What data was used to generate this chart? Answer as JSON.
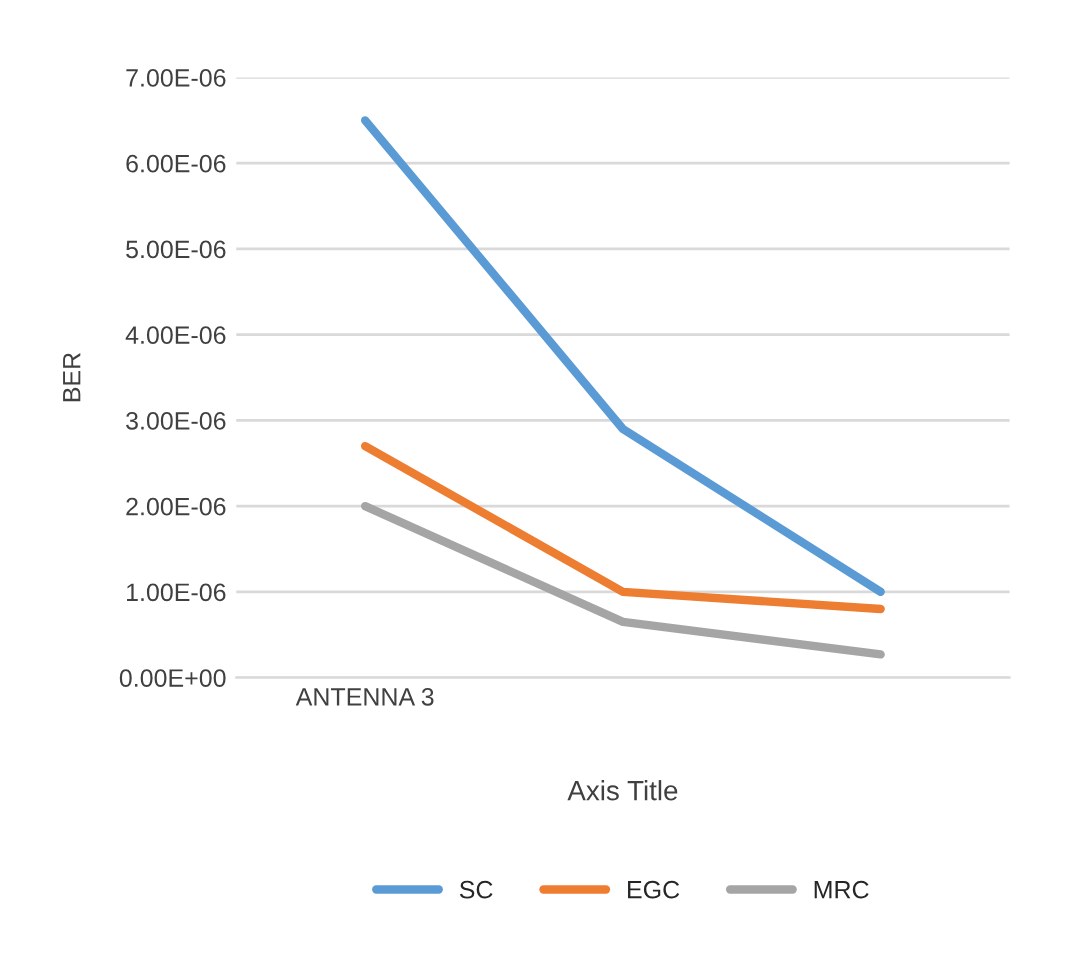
{
  "chart_data": {
    "type": "line",
    "xlabel": "Axis Title",
    "ylabel": "BER",
    "categories": [
      "ANTENNA 3",
      null,
      null
    ],
    "series": [
      {
        "name": "SC",
        "color": "#5b9bd5",
        "values": [
          6.5e-06,
          2.9e-06,
          1e-06
        ]
      },
      {
        "name": "EGC",
        "color": "#ed7d31",
        "values": [
          2.7e-06,
          1e-06,
          8e-07
        ]
      },
      {
        "name": "MRC",
        "color": "#a5a5a5",
        "values": [
          2e-06,
          6.5e-07,
          2.7e-07
        ]
      }
    ],
    "ylim": [
      0,
      7e-06
    ],
    "yticks": [
      {
        "value": 0,
        "label": "0.00E+00"
      },
      {
        "value": 1e-06,
        "label": "1.00E-06"
      },
      {
        "value": 2e-06,
        "label": "2.00E-06"
      },
      {
        "value": 3e-06,
        "label": "3.00E-06"
      },
      {
        "value": 4e-06,
        "label": "4.00E-06"
      },
      {
        "value": 5e-06,
        "label": "5.00E-06"
      },
      {
        "value": 6e-06,
        "label": "6.00E-06"
      },
      {
        "value": 7e-06,
        "label": "7.00E-06"
      }
    ],
    "grid": "y",
    "legend": "bottom",
    "line_style": "solid",
    "marker": "none"
  }
}
